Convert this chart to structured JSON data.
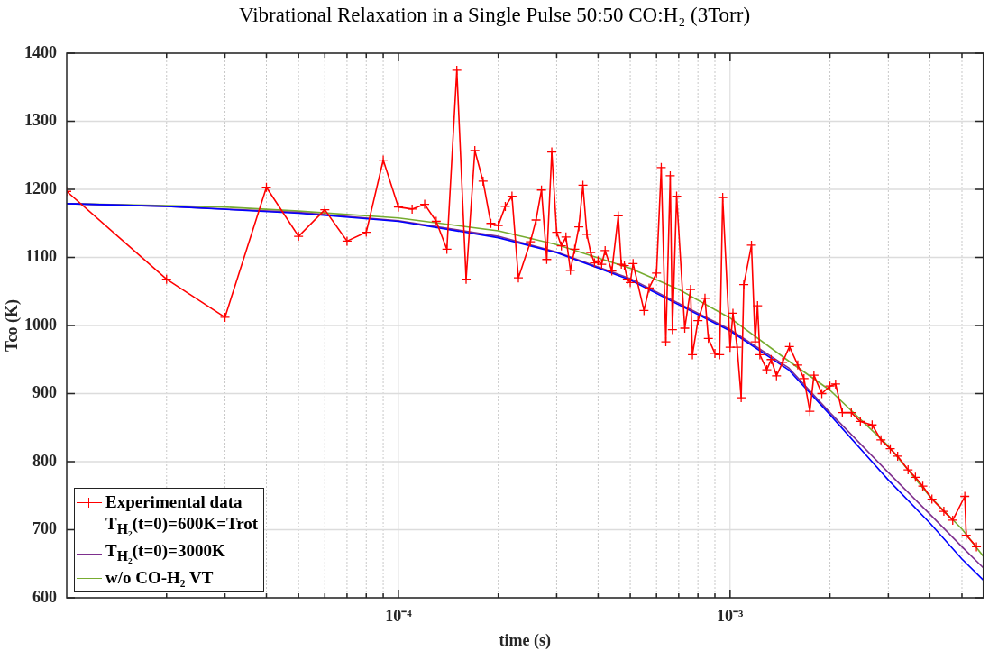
{
  "chart_data": {
    "type": "line",
    "title": "Vibrational Relaxation in a Single Pulse  50:50 CO:H₂   (3Torr)",
    "xlabel": "time (s)",
    "ylabel": "Tco (K)",
    "log": "x",
    "grid": true,
    "legend": "bottom left",
    "line_style": "solid",
    "xlim": [
      1e-05,
      0.0058
    ],
    "ylim": [
      600,
      1400
    ],
    "xticks": [
      {
        "value": 2e-05,
        "label": null
      },
      {
        "value": 3e-05,
        "label": null
      },
      {
        "value": 4e-05,
        "label": null
      },
      {
        "value": 5e-05,
        "label": null
      },
      {
        "value": 6e-05,
        "label": null
      },
      {
        "value": 7e-05,
        "label": null
      },
      {
        "value": 8e-05,
        "label": null
      },
      {
        "value": 9e-05,
        "label": null
      },
      {
        "value": 0.0001,
        "label": "10⁻⁴"
      },
      {
        "value": 0.0002,
        "label": null
      },
      {
        "value": 0.0003,
        "label": null
      },
      {
        "value": 0.0004,
        "label": null
      },
      {
        "value": 0.0005,
        "label": null
      },
      {
        "value": 0.0006,
        "label": null
      },
      {
        "value": 0.0007,
        "label": null
      },
      {
        "value": 0.0008,
        "label": null
      },
      {
        "value": 0.0009,
        "label": null
      },
      {
        "value": 0.001,
        "label": "10⁻³"
      },
      {
        "value": 0.002,
        "label": null
      },
      {
        "value": 0.003,
        "label": null
      },
      {
        "value": 0.004,
        "label": null
      },
      {
        "value": 0.005,
        "label": null
      }
    ],
    "yticks": [
      600,
      700,
      800,
      900,
      1000,
      1100,
      1200,
      1300,
      1400
    ],
    "series": [
      {
        "name": "Experimental data",
        "color": "#ff0000",
        "marker": "cross",
        "x": [
          1e-05,
          2e-05,
          3e-05,
          4e-05,
          5e-05,
          6e-05,
          7e-05,
          8e-05,
          9e-05,
          0.0001,
          0.00011,
          0.00012,
          0.00013,
          0.00014,
          0.00015,
          0.00016,
          0.00017,
          0.00018,
          0.00019,
          0.0002,
          0.00021,
          0.00022,
          0.00023,
          0.00025,
          0.00026,
          0.00027,
          0.00028,
          0.00029,
          0.0003,
          0.00031,
          0.00032,
          0.00033,
          0.00034,
          0.00035,
          0.00036,
          0.00037,
          0.00038,
          0.00039,
          0.0004,
          0.00041,
          0.00042,
          0.00044,
          0.00046,
          0.00047,
          0.00048,
          0.00049,
          0.0005,
          0.00051,
          0.00055,
          0.00057,
          0.0006,
          0.00062,
          0.00064,
          0.00066,
          0.00067,
          0.00069,
          0.00073,
          0.00076,
          0.00077,
          0.0008,
          0.00084,
          0.00086,
          0.0009,
          0.00093,
          0.00095,
          0.001,
          0.00102,
          0.00105,
          0.00108,
          0.0011,
          0.00116,
          0.00119,
          0.00121,
          0.00123,
          0.00129,
          0.00133,
          0.00138,
          0.00144,
          0.00151,
          0.0016,
          0.00167,
          0.00174,
          0.00179,
          0.00189,
          0.002,
          0.00208,
          0.00218,
          0.00232,
          0.00247,
          0.00268,
          0.00285,
          0.00304,
          0.0032,
          0.00344,
          0.00362,
          0.00381,
          0.00406,
          0.00441,
          0.00469,
          0.0051,
          0.00515,
          0.00553
        ],
        "values": [
          1197,
          1068,
          1012,
          1203,
          1131,
          1170,
          1124,
          1137,
          1243,
          1174,
          1171,
          1178,
          1153,
          1112,
          1375,
          1068,
          1257,
          1212,
          1150,
          1147,
          1175,
          1190,
          1070,
          1123,
          1155,
          1199,
          1097,
          1255,
          1137,
          1117,
          1130,
          1081,
          1112,
          1145,
          1206,
          1134,
          1107,
          1092,
          1095,
          1090,
          1110,
          1080,
          1161,
          1090,
          1088,
          1068,
          1063,
          1091,
          1022,
          1055,
          1077,
          1232,
          976,
          1220,
          994,
          1190,
          996,
          1053,
          957,
          1007,
          1040,
          981,
          959,
          957,
          1188,
          968,
          1018,
          968,
          894,
          1060,
          1118,
          976,
          1029,
          957,
          935,
          950,
          926,
          946,
          969,
          942,
          922,
          874,
          927,
          900,
          911,
          914,
          872,
          872,
          859,
          854,
          832,
          819,
          808,
          788,
          777,
          764,
          745,
          727,
          714,
          749,
          692,
          675
        ]
      },
      {
        "name": "T$_{H₂}$(t=0)=600K=Trot",
        "color": "#0000ff",
        "marker": "none",
        "x": [
          1e-05,
          2e-05,
          5e-05,
          0.0001,
          0.0002,
          0.0003,
          0.0005,
          0.001,
          0.0015,
          0.002,
          0.003,
          0.004,
          0.005,
          0.0058
        ],
        "values": [
          1179,
          1175,
          1165,
          1153,
          1129,
          1107,
          1067,
          992,
          935,
          869,
          773,
          710,
          657,
          626
        ]
      },
      {
        "name": "T$_{H₂}$(t=0)=3000K",
        "color": "#7e2f8e",
        "marker": "none",
        "x": [
          1e-05,
          2e-05,
          5e-05,
          0.0001,
          0.0002,
          0.0003,
          0.0005,
          0.001,
          0.0015,
          0.002,
          0.003,
          0.004,
          0.005,
          0.0058
        ],
        "values": [
          1179,
          1175,
          1166,
          1154,
          1131,
          1108,
          1069,
          994,
          938,
          872,
          784,
          723,
          675,
          644
        ]
      },
      {
        "name": "w/o CO-H₂ VT",
        "color": "#77ac30",
        "marker": "none",
        "x": [
          1e-05,
          2e-05,
          3e-05,
          5e-05,
          0.0001,
          0.0002,
          0.0003,
          0.0005,
          0.0007,
          0.001,
          0.0015,
          0.002,
          0.003,
          0.004,
          0.005,
          0.0058
        ],
        "values": [
          1179,
          1176,
          1174,
          1168,
          1158,
          1139,
          1119,
          1084,
          1053,
          1011,
          948,
          905,
          823,
          749,
          701,
          661
        ]
      }
    ]
  }
}
